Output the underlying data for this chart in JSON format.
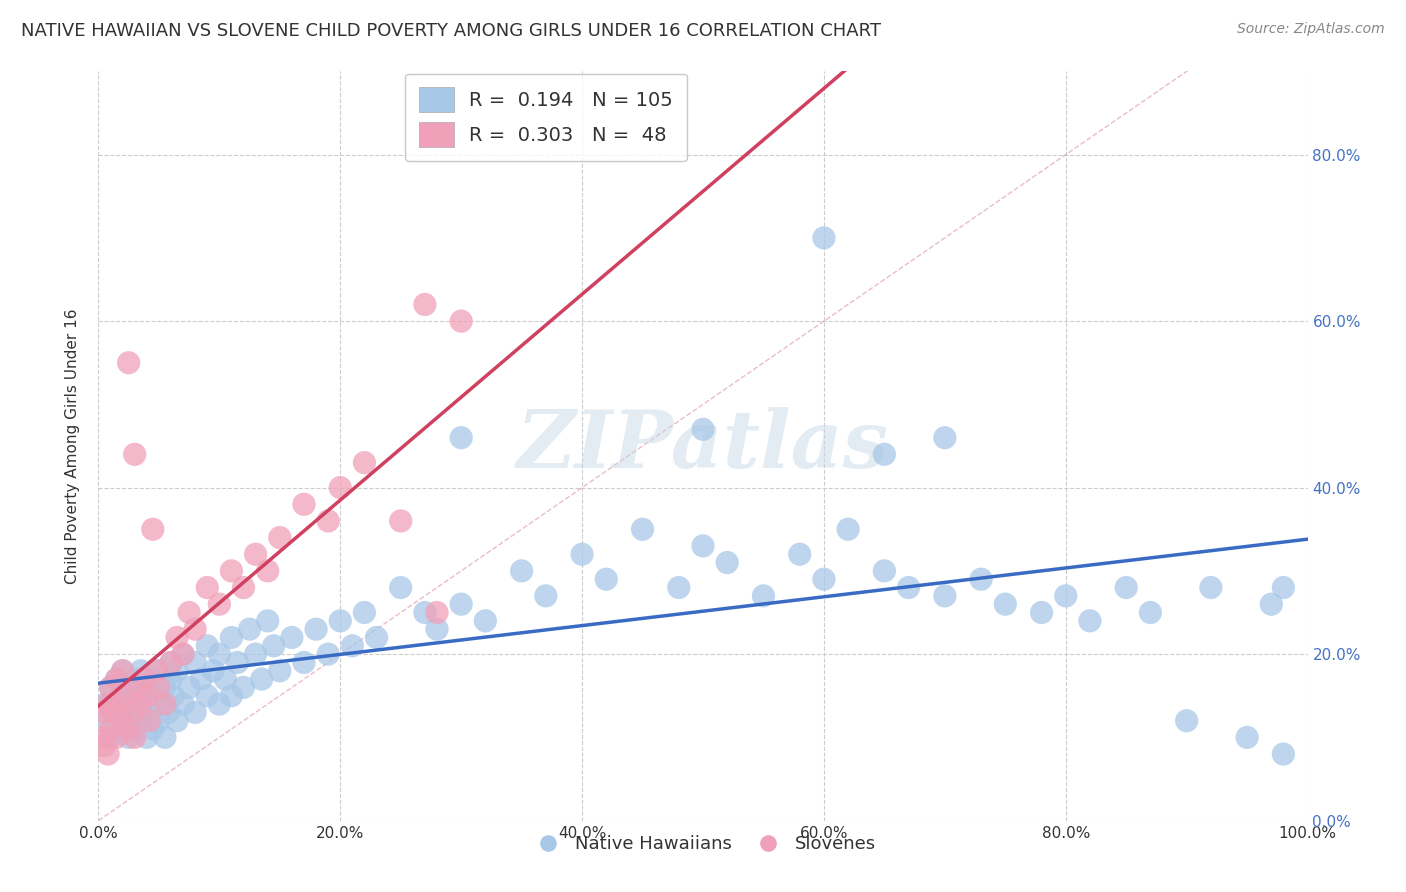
{
  "title": "NATIVE HAWAIIAN VS SLOVENE CHILD POVERTY AMONG GIRLS UNDER 16 CORRELATION CHART",
  "source": "Source: ZipAtlas.com",
  "ylabel": "Child Poverty Among Girls Under 16",
  "xlim": [
    0.0,
    1.0
  ],
  "ylim": [
    0.0,
    0.9
  ],
  "xticks": [
    0.0,
    0.2,
    0.4,
    0.6,
    0.8,
    1.0
  ],
  "xtick_labels": [
    "0.0%",
    "20.0%",
    "40.0%",
    "60.0%",
    "80.0%",
    "100.0%"
  ],
  "yticks": [
    0.0,
    0.2,
    0.4,
    0.6,
    0.8
  ],
  "ytick_labels": [
    "0.0%",
    "20.0%",
    "40.0%",
    "60.0%",
    "80.0%"
  ],
  "blue_color": "#a8c8e8",
  "pink_color": "#f0a0b8",
  "blue_line_color": "#3a6bc4",
  "pink_line_color": "#d04060",
  "R_blue": "0.194",
  "N_blue": "105",
  "R_pink": "0.303",
  "N_pink": "48",
  "grid_color": "#cccccc",
  "title_fontsize": 13,
  "axis_label_fontsize": 11,
  "tick_fontsize": 11,
  "background_color": "#ffffff",
  "blue_scatter_x": [
    0.005,
    0.008,
    0.01,
    0.01,
    0.012,
    0.015,
    0.015,
    0.018,
    0.02,
    0.02,
    0.022,
    0.025,
    0.025,
    0.028,
    0.03,
    0.03,
    0.032,
    0.035,
    0.035,
    0.038,
    0.04,
    0.04,
    0.042,
    0.045,
    0.045,
    0.048,
    0.05,
    0.05,
    0.052,
    0.055,
    0.055,
    0.058,
    0.06,
    0.06,
    0.062,
    0.065,
    0.065,
    0.07,
    0.07,
    0.075,
    0.08,
    0.08,
    0.085,
    0.09,
    0.09,
    0.095,
    0.1,
    0.1,
    0.105,
    0.11,
    0.11,
    0.115,
    0.12,
    0.125,
    0.13,
    0.135,
    0.14,
    0.145,
    0.15,
    0.16,
    0.17,
    0.18,
    0.19,
    0.2,
    0.21,
    0.22,
    0.23,
    0.25,
    0.27,
    0.28,
    0.3,
    0.32,
    0.35,
    0.37,
    0.4,
    0.42,
    0.45,
    0.48,
    0.5,
    0.52,
    0.55,
    0.58,
    0.6,
    0.62,
    0.65,
    0.67,
    0.7,
    0.73,
    0.75,
    0.78,
    0.8,
    0.82,
    0.85,
    0.87,
    0.9,
    0.92,
    0.95,
    0.97,
    0.98,
    0.3,
    0.5,
    0.6,
    0.65,
    0.7,
    0.98
  ],
  "blue_scatter_y": [
    0.14,
    0.12,
    0.16,
    0.1,
    0.13,
    0.11,
    0.17,
    0.15,
    0.12,
    0.18,
    0.14,
    0.1,
    0.16,
    0.13,
    0.11,
    0.17,
    0.15,
    0.12,
    0.18,
    0.14,
    0.1,
    0.16,
    0.13,
    0.11,
    0.17,
    0.15,
    0.12,
    0.18,
    0.14,
    0.1,
    0.16,
    0.13,
    0.19,
    0.17,
    0.15,
    0.12,
    0.18,
    0.14,
    0.2,
    0.16,
    0.13,
    0.19,
    0.17,
    0.15,
    0.21,
    0.18,
    0.14,
    0.2,
    0.17,
    0.15,
    0.22,
    0.19,
    0.16,
    0.23,
    0.2,
    0.17,
    0.24,
    0.21,
    0.18,
    0.22,
    0.19,
    0.23,
    0.2,
    0.24,
    0.21,
    0.25,
    0.22,
    0.28,
    0.25,
    0.23,
    0.26,
    0.24,
    0.3,
    0.27,
    0.32,
    0.29,
    0.35,
    0.28,
    0.33,
    0.31,
    0.27,
    0.32,
    0.29,
    0.35,
    0.3,
    0.28,
    0.27,
    0.29,
    0.26,
    0.25,
    0.27,
    0.24,
    0.28,
    0.25,
    0.12,
    0.28,
    0.1,
    0.26,
    0.28,
    0.46,
    0.47,
    0.7,
    0.44,
    0.46,
    0.08
  ],
  "pink_scatter_x": [
    0.005,
    0.005,
    0.008,
    0.01,
    0.01,
    0.012,
    0.015,
    0.015,
    0.018,
    0.02,
    0.02,
    0.022,
    0.025,
    0.025,
    0.028,
    0.03,
    0.03,
    0.032,
    0.035,
    0.038,
    0.04,
    0.042,
    0.045,
    0.048,
    0.05,
    0.055,
    0.06,
    0.065,
    0.07,
    0.075,
    0.08,
    0.09,
    0.1,
    0.11,
    0.12,
    0.13,
    0.14,
    0.15,
    0.17,
    0.19,
    0.2,
    0.22,
    0.25,
    0.27,
    0.28,
    0.3,
    0.005,
    0.008
  ],
  "pink_scatter_y": [
    0.13,
    0.1,
    0.14,
    0.11,
    0.16,
    0.13,
    0.1,
    0.17,
    0.14,
    0.12,
    0.18,
    0.15,
    0.11,
    0.55,
    0.13,
    0.1,
    0.44,
    0.16,
    0.14,
    0.17,
    0.15,
    0.12,
    0.35,
    0.18,
    0.16,
    0.14,
    0.19,
    0.22,
    0.2,
    0.25,
    0.23,
    0.28,
    0.26,
    0.3,
    0.28,
    0.32,
    0.3,
    0.34,
    0.38,
    0.36,
    0.4,
    0.43,
    0.36,
    0.62,
    0.25,
    0.6,
    0.09,
    0.08
  ]
}
